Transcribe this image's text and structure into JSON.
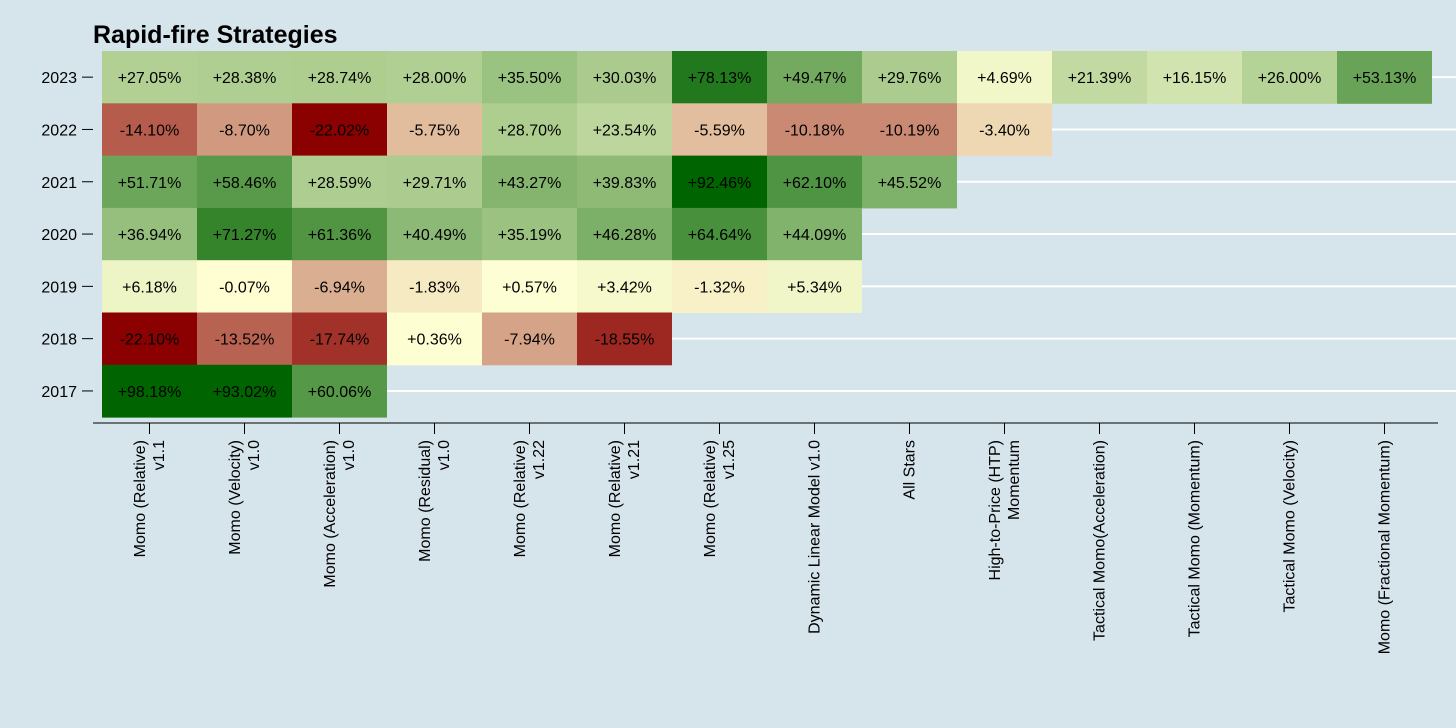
{
  "chart_data": {
    "type": "heatmap",
    "title": "Rapid-fire Strategies",
    "xlabel": "",
    "ylabel": "",
    "grid": true,
    "legend": "none",
    "colors": {
      "background": "#d6e4ec",
      "negative": "#8b0000",
      "neutral": "#ffffd4",
      "positive": "#006400",
      "grid": "#ffffff"
    },
    "categories": [
      [
        "Momo (Relative)",
        "v1.1"
      ],
      [
        "Momo (Velocity)",
        "v1.0"
      ],
      [
        "Momo (Acceleration)",
        "v1.0"
      ],
      [
        "Momo (Residual)",
        "v1.0"
      ],
      [
        "Momo (Relative)",
        "v1.22"
      ],
      [
        "Momo (Relative)",
        "v1.21"
      ],
      [
        "Momo (Relative)",
        "v1.25"
      ],
      [
        "Dynamic Linear Model v1.0"
      ],
      [
        "All Stars"
      ],
      [
        "High-to-Price (HTP)",
        "Momentum"
      ],
      [
        "Tactical Momo(Acceleration)"
      ],
      [
        "Tactical Momo (Momentum)"
      ],
      [
        "Tactical Momo (Velocity)"
      ],
      [
        "Momo (Fractional Momentum)"
      ]
    ],
    "rows": [
      {
        "year": "2023",
        "values": [
          27.05,
          28.38,
          28.74,
          28.0,
          35.5,
          30.03,
          78.13,
          49.47,
          29.76,
          4.69,
          21.39,
          16.15,
          26.0,
          53.13
        ],
        "labels": [
          "+27.05%",
          "+28.38%",
          "+28.74%",
          "+28.00%",
          "+35.50%",
          "+30.03%",
          "+78.13%",
          "+49.47%",
          "+29.76%",
          "+4.69%",
          "+21.39%",
          "+16.15%",
          "+26.00%",
          "+53.13%"
        ]
      },
      {
        "year": "2022",
        "values": [
          -14.1,
          -8.7,
          -22.02,
          -5.75,
          28.7,
          23.54,
          -5.59,
          -10.18,
          -10.19,
          -3.4
        ],
        "labels": [
          "-14.10%",
          "-8.70%",
          "-22.02%",
          "-5.75%",
          "+28.70%",
          "+23.54%",
          "-5.59%",
          "-10.18%",
          "-10.19%",
          "-3.40%"
        ]
      },
      {
        "year": "2021",
        "values": [
          51.71,
          58.46,
          28.59,
          29.71,
          43.27,
          39.83,
          92.46,
          62.1,
          45.52
        ],
        "labels": [
          "+51.71%",
          "+58.46%",
          "+28.59%",
          "+29.71%",
          "+43.27%",
          "+39.83%",
          "+92.46%",
          "+62.10%",
          "+45.52%"
        ]
      },
      {
        "year": "2020",
        "values": [
          36.94,
          71.27,
          61.36,
          40.49,
          35.19,
          46.28,
          64.64,
          44.09
        ],
        "labels": [
          "+36.94%",
          "+71.27%",
          "+61.36%",
          "+40.49%",
          "+35.19%",
          "+46.28%",
          "+64.64%",
          "+44.09%"
        ]
      },
      {
        "year": "2019",
        "values": [
          6.18,
          -0.07,
          -6.94,
          -1.83,
          0.57,
          3.42,
          -1.32,
          5.34
        ],
        "labels": [
          "+6.18%",
          "-0.07%",
          "-6.94%",
          "-1.83%",
          "+0.57%",
          "+3.42%",
          "-1.32%",
          "+5.34%"
        ]
      },
      {
        "year": "2018",
        "values": [
          -22.1,
          -13.52,
          -17.74,
          0.36,
          -7.94,
          -18.55
        ],
        "labels": [
          "-22.10%",
          "-13.52%",
          "-17.74%",
          "+0.36%",
          "-7.94%",
          "-18.55%"
        ]
      },
      {
        "year": "2017",
        "values": [
          98.18,
          93.02,
          60.06
        ],
        "labels": [
          "+98.18%",
          "+93.02%",
          "+60.06%"
        ]
      }
    ]
  }
}
